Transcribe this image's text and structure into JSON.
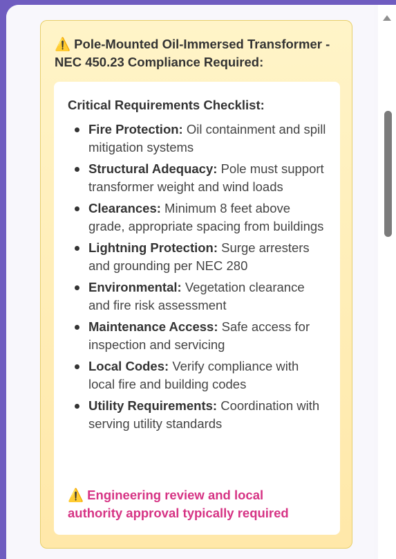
{
  "panel": {
    "scroll_up_icon": "triangle-up-icon"
  },
  "warning": {
    "title": "⚠️ Pole-Mounted Oil-Immersed Transformer - NEC 450.23 Compliance Required:",
    "checklist": {
      "heading": "Critical Requirements Checklist:",
      "items": [
        {
          "label": "Fire Protection:",
          "text": "Oil containment and spill mitigation systems"
        },
        {
          "label": "Structural Adequacy:",
          "text": "Pole must support transformer weight and wind loads"
        },
        {
          "label": "Clearances:",
          "text": "Minimum 8 feet above grade, appropriate spacing from buildings"
        },
        {
          "label": "Lightning Protection:",
          "text": "Surge arresters and grounding per NEC 280"
        },
        {
          "label": "Environmental:",
          "text": "Vegetation clearance and fire risk assessment"
        },
        {
          "label": "Maintenance Access:",
          "text": "Safe access for inspection and servicing"
        },
        {
          "label": "Local Codes:",
          "text": "Verify compliance with local fire and building codes"
        },
        {
          "label": "Utility Requirements:",
          "text": "Coordination with serving utility standards"
        }
      ]
    },
    "approval_note": "⚠️ Engineering review and local authority approval typically required"
  },
  "colors": {
    "background": "#6f5cc0",
    "card_fill": "#fff4c8",
    "card_border": "#e8cf68",
    "note_text": "#d63384"
  }
}
